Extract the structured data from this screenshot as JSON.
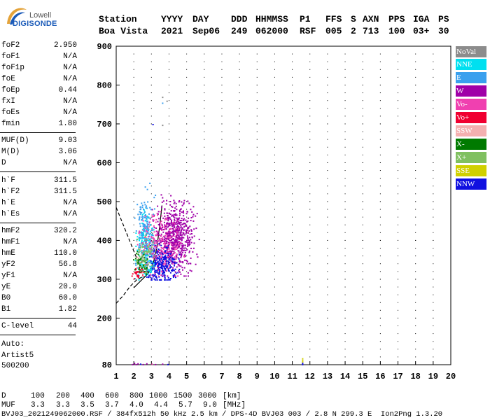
{
  "logo": {
    "line1": "Lowell",
    "line2": "DIGISONDE"
  },
  "header": {
    "labels": [
      "Station",
      "YYYY",
      "DAY",
      "DDD",
      "HHMMSS",
      "P1",
      "FFS",
      "S",
      "AXN",
      "PPS",
      "IGA",
      "PS"
    ],
    "values": [
      "Boa Vista",
      "2021",
      "Sep06",
      "249",
      "062000",
      "RSF",
      "005",
      "2",
      "713",
      "100",
      "03+",
      "30"
    ]
  },
  "params": [
    {
      "key": "foF2",
      "value": "2.950"
    },
    {
      "key": "foF1",
      "value": "N/A"
    },
    {
      "key": "foF1p",
      "value": "N/A"
    },
    {
      "key": "foE",
      "value": "N/A"
    },
    {
      "key": "foEp",
      "value": "0.44"
    },
    {
      "key": "fxI",
      "value": "N/A"
    },
    {
      "key": "foEs",
      "value": "N/A"
    },
    {
      "key": "fmin",
      "value": "1.80"
    },
    {
      "key": "MUF(D)",
      "value": "9.03"
    },
    {
      "key": "M(D)",
      "value": "3.06"
    },
    {
      "key": "D",
      "value": "N/A"
    },
    {
      "key": "h`F",
      "value": "311.5"
    },
    {
      "key": "h`F2",
      "value": "311.5"
    },
    {
      "key": "h`E",
      "value": "N/A"
    },
    {
      "key": "h`Es",
      "value": "N/A"
    },
    {
      "key": "hmF2",
      "value": "320.2"
    },
    {
      "key": "hmF1",
      "value": "N/A"
    },
    {
      "key": "hmE",
      "value": "110.0"
    },
    {
      "key": "yF2",
      "value": "56.8"
    },
    {
      "key": "yF1",
      "value": "N/A"
    },
    {
      "key": "yE",
      "value": "20.0"
    },
    {
      "key": "B0",
      "value": "60.0"
    },
    {
      "key": "B1",
      "value": "1.82"
    },
    {
      "key": "C-level",
      "value": "44"
    }
  ],
  "auto": {
    "line1": "Auto:",
    "line2": "Artist5",
    "line3": "500200"
  },
  "legend": [
    {
      "label": "NoVal",
      "color": "#8c8c8c"
    },
    {
      "label": "NNE",
      "color": "#00e0f0"
    },
    {
      "label": "E",
      "color": "#3aa0ee"
    },
    {
      "label": "W",
      "color": "#a000a8"
    },
    {
      "label": "Vo-",
      "color": "#f040b0"
    },
    {
      "label": "Vo+",
      "color": "#f00030"
    },
    {
      "label": "SSW",
      "color": "#f4b0b0"
    },
    {
      "label": "X-",
      "color": "#007a00"
    },
    {
      "label": "X+",
      "color": "#80c060"
    },
    {
      "label": "SSE",
      "color": "#d0d000"
    },
    {
      "label": "NNW",
      "color": "#1010e0"
    }
  ],
  "chart_data": {
    "type": "scatter",
    "title": "",
    "xlabel": "",
    "ylabel": "",
    "xlim": [
      1,
      20
    ],
    "ylim": [
      80,
      900
    ],
    "x_ticks": [
      1,
      2,
      3,
      4,
      5,
      6,
      7,
      8,
      9,
      10,
      11,
      12,
      13,
      14,
      15,
      16,
      17,
      18,
      19,
      20
    ],
    "y_ticks": [
      80,
      200,
      300,
      400,
      500,
      600,
      700,
      800,
      900
    ],
    "clusters": [
      {
        "name": "W",
        "color": "#a000a8",
        "x_range": [
          3.0,
          5.8
        ],
        "y_range": [
          310,
          540
        ],
        "center": [
          4.3,
          410
        ],
        "count": 650
      },
      {
        "name": "NNW",
        "color": "#1010e0",
        "x_range": [
          2.7,
          5.0
        ],
        "y_range": [
          300,
          420
        ],
        "center": [
          3.5,
          340
        ],
        "count": 320
      },
      {
        "name": "NNE",
        "color": "#00e0f0",
        "x_range": [
          1.8,
          3.1
        ],
        "y_range": [
          300,
          520
        ],
        "center": [
          2.6,
          390
        ],
        "count": 200
      },
      {
        "name": "E",
        "color": "#3aa0ee",
        "x_range": [
          1.9,
          3.2
        ],
        "y_range": [
          310,
          580
        ],
        "center": [
          2.6,
          420
        ],
        "count": 170
      },
      {
        "name": "Vo-",
        "color": "#f040b0",
        "x_range": [
          2.0,
          5.2
        ],
        "y_range": [
          310,
          520
        ],
        "center": [
          3.6,
          390
        ],
        "count": 200
      },
      {
        "name": "Vo+",
        "color": "#f00030",
        "x_range": [
          1.8,
          2.7
        ],
        "y_range": [
          300,
          340
        ],
        "center": [
          2.2,
          318
        ],
        "count": 35
      },
      {
        "name": "SSW",
        "color": "#f4b0b0",
        "x_range": [
          1.8,
          3.0
        ],
        "y_range": [
          300,
          470
        ],
        "center": [
          2.4,
          360
        ],
        "count": 25
      },
      {
        "name": "X-",
        "color": "#007a00",
        "x_range": [
          1.9,
          3.0
        ],
        "y_range": [
          305,
          400
        ],
        "center": [
          2.4,
          340
        ],
        "count": 45
      },
      {
        "name": "X+",
        "color": "#80c060",
        "x_range": [
          1.9,
          3.2
        ],
        "y_range": [
          310,
          450
        ],
        "center": [
          2.6,
          370
        ],
        "count": 55
      },
      {
        "name": "NoVal",
        "color": "#8c8c8c",
        "x_range": [
          2.2,
          3.3
        ],
        "y_range": [
          310,
          480
        ],
        "center": [
          2.8,
          380
        ],
        "count": 25
      }
    ],
    "lowband_points": [
      {
        "x": 1.9,
        "y": 82,
        "color": "#a000a8"
      },
      {
        "x": 2.0,
        "y": 85,
        "color": "#a000a8"
      },
      {
        "x": 2.1,
        "y": 82,
        "color": "#a000a8"
      },
      {
        "x": 2.2,
        "y": 84,
        "color": "#a000a8"
      },
      {
        "x": 2.35,
        "y": 83,
        "color": "#1010e0"
      },
      {
        "x": 2.5,
        "y": 82,
        "color": "#a000a8"
      },
      {
        "x": 2.7,
        "y": 84,
        "color": "#a000a8"
      },
      {
        "x": 3.0,
        "y": 83,
        "color": "#f040b0"
      },
      {
        "x": 3.2,
        "y": 82,
        "color": "#a000a8"
      },
      {
        "x": 3.6,
        "y": 83,
        "color": "#a000a8"
      },
      {
        "x": 3.9,
        "y": 82,
        "color": "#1010e0"
      }
    ],
    "spike_points": [
      {
        "x": 11.55,
        "y": 82,
        "color": "#1010e0"
      },
      {
        "x": 11.55,
        "y": 85,
        "color": "#1010e0"
      },
      {
        "x": 11.55,
        "y": 89,
        "color": "#d0d000"
      },
      {
        "x": 11.55,
        "y": 93,
        "color": "#d0d000"
      },
      {
        "x": 11.55,
        "y": 97,
        "color": "#d0d000"
      }
    ],
    "high_points": [
      {
        "x": 3.6,
        "y": 770,
        "color": "#8c8c8c"
      },
      {
        "x": 3.6,
        "y": 755,
        "color": "#3aa0ee"
      },
      {
        "x": 3.85,
        "y": 760,
        "color": "#8c8c8c"
      },
      {
        "x": 3.05,
        "y": 700,
        "color": "#1010e0"
      },
      {
        "x": 3.6,
        "y": 698,
        "color": "#8c8c8c"
      }
    ],
    "model_curves": [
      {
        "name": "trace-upper",
        "style": "dashed",
        "points": [
          [
            1,
            485
          ],
          [
            1.4,
            440
          ],
          [
            1.8,
            395
          ],
          [
            2.2,
            350
          ],
          [
            2.6,
            318
          ],
          [
            3.0,
            320
          ]
        ]
      },
      {
        "name": "trace-lower",
        "style": "dashed",
        "points": [
          [
            1,
            238
          ],
          [
            1.4,
            258
          ],
          [
            1.8,
            282
          ],
          [
            2.2,
            300
          ],
          [
            2.6,
            308
          ]
        ]
      },
      {
        "name": "profile",
        "style": "solid",
        "points": [
          [
            2.0,
            278
          ],
          [
            2.4,
            296
          ],
          [
            2.8,
            314
          ],
          [
            3.1,
            340
          ],
          [
            3.3,
            380
          ],
          [
            3.45,
            430
          ],
          [
            3.55,
            470
          ],
          [
            3.6,
            490
          ]
        ]
      }
    ]
  },
  "bottom": {
    "d_label": "D",
    "d_values": [
      "100",
      "200",
      "400",
      "600",
      "800",
      "1000",
      "1500",
      "3000"
    ],
    "d_unit": "[km]",
    "muf_label": "MUF",
    "muf_values": [
      "3.3",
      "3.3",
      "3.5",
      "3.7",
      "4.0",
      "4.4",
      "5.7",
      "9.0"
    ],
    "muf_unit": "[MHz]",
    "footer": "BVJ03_2021249062000.RSF / 384fx512h 50 kHz 2.5 km / DPS-4D BVJ03 003 / 2.8 N 299.3 E  Ion2Png 1.3.20"
  }
}
